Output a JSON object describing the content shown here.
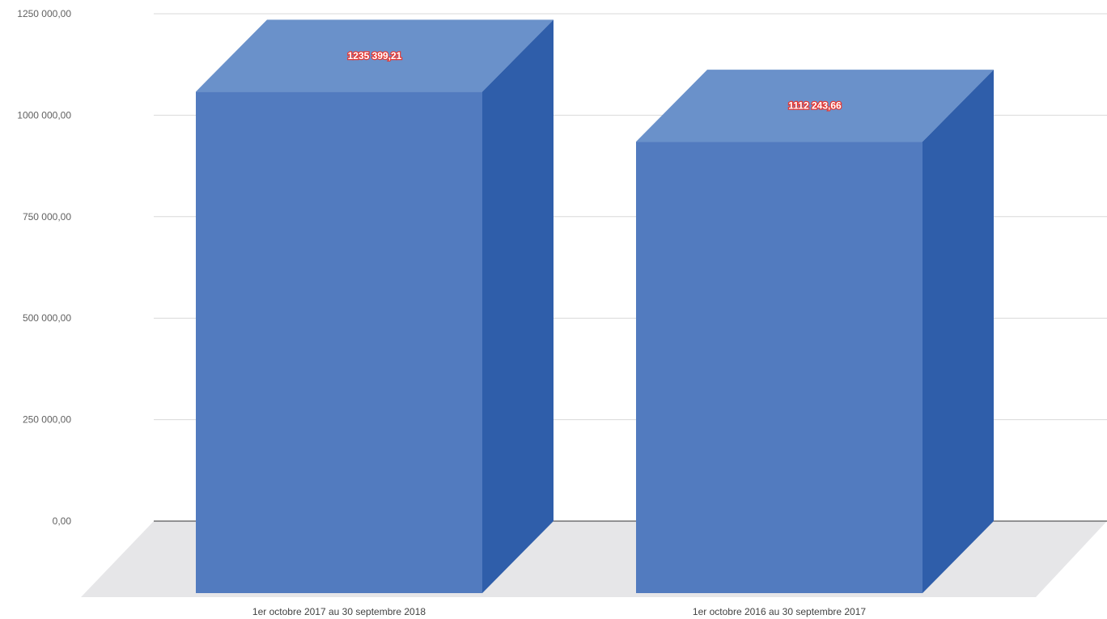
{
  "chart_data": {
    "type": "bar",
    "title": "",
    "xlabel": "",
    "ylabel": "",
    "categories": [
      "1er octobre 2017 au 30 septembre 2018",
      "1er octobre 2016 au 30 septembre 2017"
    ],
    "values": [
      1235399.21,
      1112243.66
    ],
    "data_labels": [
      "1235 399,21",
      "1112 243,66"
    ],
    "ylim": [
      0,
      1250000
    ],
    "yticks": [
      0,
      250000,
      500000,
      750000,
      1000000,
      1250000
    ],
    "ytick_labels": [
      "0,00",
      "250 000,00",
      "500 000,00",
      "750 000,00",
      "1000 000,00",
      "1250 000,00"
    ],
    "grid": true,
    "legend": "none",
    "style": "3d",
    "colors": {
      "bar_front": "#527bbf",
      "bar_top": "#6a91ca",
      "bar_side": "#2f5eaa",
      "floor": "#e6e6e8",
      "gridline": "#d9d9d9",
      "baseline": "#333333",
      "data_label_outline": "#e53935"
    }
  }
}
